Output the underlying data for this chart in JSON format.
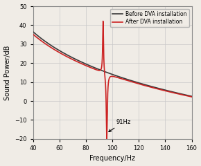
{
  "xlim": [
    40,
    160
  ],
  "ylim": [
    -20,
    50
  ],
  "xlabel": "Frequency/Hz",
  "ylabel": "Sound Power/dB",
  "xticks": [
    40,
    60,
    80,
    100,
    120,
    140,
    160
  ],
  "yticks": [
    -20,
    -10,
    0,
    10,
    20,
    30,
    40,
    50
  ],
  "grid_color": "#c8c8c8",
  "background_color": "#f0ece6",
  "legend_entries": [
    "Before DVA installation",
    "After DVA installation"
  ],
  "black_line_color": "#3a3a3a",
  "red_line_color": "#cc2222",
  "annotation_text": "91Hz",
  "figsize": [
    2.9,
    2.4
  ],
  "dpi": 100
}
